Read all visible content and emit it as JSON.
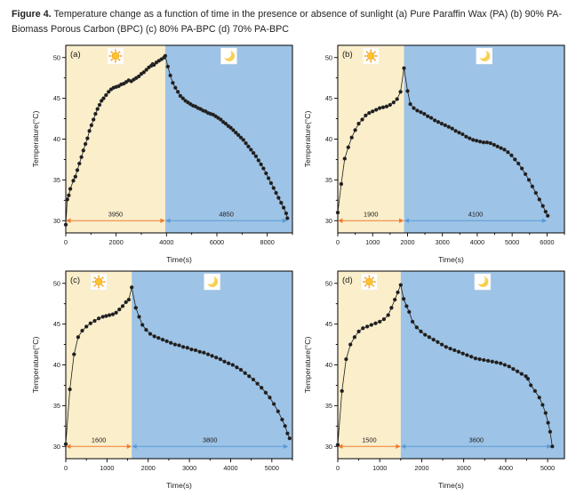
{
  "caption": {
    "bold_prefix": "Figure 4.",
    "text": " Temperature change as a function of time in the presence or absence of sunlight (a) Pure Paraffin Wax (PA) (b) 90% PA-Biomass Porous Carbon (BPC) (c) 80% PA-BPC (d) 70% PA-BPC"
  },
  "colors": {
    "day_region": "#FBEECB",
    "night_region": "#9DC3E6",
    "day_arrow": "#ED7D31",
    "night_arrow": "#5B9BD5",
    "curve": "#1C1C1C",
    "sun": "#F6A21C",
    "sun_core": "#FDC431",
    "moon": "#F7D154",
    "axis": "#000000",
    "text": "#1B1B1B"
  },
  "chart_data": [
    {
      "type": "scatter",
      "panel": "(a)",
      "sample": "Pure Paraffin Wax (PA)",
      "xlabel": "Time(s)",
      "ylabel": "Temperature(°C)",
      "xlim": [
        0,
        9000
      ],
      "ylim": [
        28.5,
        51.5
      ],
      "xticks": [
        0,
        2000,
        4000,
        6000,
        8000
      ],
      "yticks": [
        30,
        35,
        40,
        45,
        50
      ],
      "day_end": 3950,
      "night_end": 8800,
      "day_label": "3950",
      "night_label": "4850",
      "annotation_y": 30,
      "icons": [
        "sun-icon",
        "moon-icon"
      ],
      "points": [
        [
          0,
          29.5
        ],
        [
          60,
          32.6
        ],
        [
          120,
          33.1
        ],
        [
          180,
          33.9
        ],
        [
          300,
          34.9
        ],
        [
          380,
          35.4
        ],
        [
          460,
          36.2
        ],
        [
          540,
          37.0
        ],
        [
          620,
          37.8
        ],
        [
          700,
          38.6
        ],
        [
          780,
          39.4
        ],
        [
          860,
          40.1
        ],
        [
          940,
          41.0
        ],
        [
          1020,
          41.7
        ],
        [
          1100,
          42.4
        ],
        [
          1180,
          43.1
        ],
        [
          1260,
          43.7
        ],
        [
          1340,
          44.2
        ],
        [
          1420,
          44.7
        ],
        [
          1500,
          45.0
        ],
        [
          1600,
          45.4
        ],
        [
          1700,
          45.8
        ],
        [
          1800,
          46.1
        ],
        [
          1900,
          46.3
        ],
        [
          2000,
          46.4
        ],
        [
          2100,
          46.5
        ],
        [
          2200,
          46.7
        ],
        [
          2300,
          46.8
        ],
        [
          2400,
          47.0
        ],
        [
          2500,
          47.2
        ],
        [
          2600,
          47.1
        ],
        [
          2700,
          47.3
        ],
        [
          2800,
          47.5
        ],
        [
          2900,
          47.7
        ],
        [
          3000,
          48.0
        ],
        [
          3100,
          48.2
        ],
        [
          3200,
          48.5
        ],
        [
          3300,
          48.8
        ],
        [
          3400,
          49.0
        ],
        [
          3450,
          49.2
        ],
        [
          3500,
          49.1
        ],
        [
          3600,
          49.4
        ],
        [
          3700,
          49.6
        ],
        [
          3800,
          49.8
        ],
        [
          3900,
          50.0
        ],
        [
          3950,
          50.2
        ],
        [
          4050,
          48.9
        ],
        [
          4150,
          47.8
        ],
        [
          4250,
          46.9
        ],
        [
          4350,
          46.3
        ],
        [
          4450,
          45.8
        ],
        [
          4550,
          45.3
        ],
        [
          4650,
          45.0
        ],
        [
          4750,
          44.7
        ],
        [
          4850,
          44.5
        ],
        [
          4950,
          44.3
        ],
        [
          5050,
          44.1
        ],
        [
          5150,
          44.0
        ],
        [
          5250,
          43.8
        ],
        [
          5350,
          43.7
        ],
        [
          5450,
          43.5
        ],
        [
          5550,
          43.4
        ],
        [
          5650,
          43.2
        ],
        [
          5750,
          43.1
        ],
        [
          5850,
          43.0
        ],
        [
          5950,
          42.8
        ],
        [
          6050,
          42.6
        ],
        [
          6150,
          42.4
        ],
        [
          6250,
          42.1
        ],
        [
          6350,
          41.9
        ],
        [
          6450,
          41.6
        ],
        [
          6550,
          41.4
        ],
        [
          6650,
          41.1
        ],
        [
          6750,
          40.8
        ],
        [
          6850,
          40.5
        ],
        [
          6950,
          40.2
        ],
        [
          7050,
          39.9
        ],
        [
          7150,
          39.5
        ],
        [
          7250,
          39.1
        ],
        [
          7350,
          38.7
        ],
        [
          7450,
          38.3
        ],
        [
          7550,
          37.9
        ],
        [
          7650,
          37.4
        ],
        [
          7750,
          36.9
        ],
        [
          7850,
          36.4
        ],
        [
          7950,
          35.8
        ],
        [
          8050,
          35.2
        ],
        [
          8150,
          34.6
        ],
        [
          8250,
          34.0
        ],
        [
          8350,
          33.4
        ],
        [
          8450,
          32.8
        ],
        [
          8550,
          32.2
        ],
        [
          8650,
          31.6
        ],
        [
          8750,
          30.9
        ],
        [
          8800,
          30.3
        ]
      ]
    },
    {
      "type": "scatter",
      "panel": "(b)",
      "sample": "90% PA-BPC",
      "xlabel": "Time(s)",
      "ylabel": "Temperature(°C)",
      "xlim": [
        0,
        6500
      ],
      "ylim": [
        28.5,
        51.5
      ],
      "xticks": [
        0,
        1000,
        2000,
        3000,
        4000,
        5000,
        6000
      ],
      "yticks": [
        30,
        35,
        40,
        45,
        50
      ],
      "day_end": 1900,
      "night_end": 6000,
      "day_label": "1900",
      "night_label": "4100",
      "annotation_y": 30,
      "icons": [
        "sun-icon",
        "moon-icon"
      ],
      "points": [
        [
          0,
          31.0
        ],
        [
          100,
          34.5
        ],
        [
          200,
          37.6
        ],
        [
          300,
          39.0
        ],
        [
          400,
          40.2
        ],
        [
          500,
          41.1
        ],
        [
          600,
          41.9
        ],
        [
          700,
          42.4
        ],
        [
          800,
          42.9
        ],
        [
          900,
          43.2
        ],
        [
          1000,
          43.4
        ],
        [
          1100,
          43.6
        ],
        [
          1200,
          43.8
        ],
        [
          1300,
          43.9
        ],
        [
          1400,
          44.0
        ],
        [
          1500,
          44.2
        ],
        [
          1600,
          44.5
        ],
        [
          1700,
          44.9
        ],
        [
          1800,
          45.8
        ],
        [
          1900,
          48.7
        ],
        [
          2000,
          45.9
        ],
        [
          2080,
          44.3
        ],
        [
          2180,
          43.8
        ],
        [
          2280,
          43.5
        ],
        [
          2380,
          43.3
        ],
        [
          2480,
          43.1
        ],
        [
          2580,
          42.8
        ],
        [
          2680,
          42.6
        ],
        [
          2780,
          42.3
        ],
        [
          2880,
          42.1
        ],
        [
          2980,
          41.9
        ],
        [
          3080,
          41.7
        ],
        [
          3180,
          41.5
        ],
        [
          3280,
          41.3
        ],
        [
          3380,
          41.0
        ],
        [
          3480,
          40.8
        ],
        [
          3580,
          40.6
        ],
        [
          3680,
          40.3
        ],
        [
          3780,
          40.1
        ],
        [
          3880,
          39.9
        ],
        [
          3980,
          39.8
        ],
        [
          4080,
          39.7
        ],
        [
          4180,
          39.6
        ],
        [
          4280,
          39.6
        ],
        [
          4380,
          39.5
        ],
        [
          4480,
          39.3
        ],
        [
          4580,
          39.1
        ],
        [
          4680,
          38.9
        ],
        [
          4780,
          38.7
        ],
        [
          4880,
          38.4
        ],
        [
          4980,
          38.0
        ],
        [
          5080,
          37.5
        ],
        [
          5180,
          37.0
        ],
        [
          5280,
          36.4
        ],
        [
          5380,
          35.7
        ],
        [
          5480,
          35.0
        ],
        [
          5580,
          34.2
        ],
        [
          5680,
          33.4
        ],
        [
          5780,
          32.6
        ],
        [
          5880,
          31.8
        ],
        [
          5960,
          31.1
        ],
        [
          6020,
          30.6
        ]
      ]
    },
    {
      "type": "scatter",
      "panel": "(c)",
      "sample": "80% PA-BPC",
      "xlabel": "Time(s)",
      "ylabel": "Temperature(°C)",
      "xlim": [
        0,
        5500
      ],
      "ylim": [
        28.5,
        51.5
      ],
      "xticks": [
        0,
        1000,
        2000,
        3000,
        4000,
        5000
      ],
      "yticks": [
        30,
        35,
        40,
        45,
        50
      ],
      "day_end": 1600,
      "night_end": 5400,
      "day_label": "1600",
      "night_label": "3800",
      "annotation_y": 30,
      "icons": [
        "sun-icon",
        "moon-icon"
      ],
      "points": [
        [
          0,
          30.3
        ],
        [
          100,
          37.0
        ],
        [
          200,
          41.3
        ],
        [
          300,
          43.4
        ],
        [
          400,
          44.2
        ],
        [
          500,
          44.7
        ],
        [
          600,
          45.1
        ],
        [
          700,
          45.4
        ],
        [
          800,
          45.7
        ],
        [
          900,
          45.9
        ],
        [
          980,
          46.0
        ],
        [
          1060,
          46.1
        ],
        [
          1140,
          46.2
        ],
        [
          1220,
          46.4
        ],
        [
          1300,
          46.8
        ],
        [
          1380,
          47.2
        ],
        [
          1460,
          47.7
        ],
        [
          1530,
          48.0
        ],
        [
          1600,
          49.5
        ],
        [
          1700,
          47.0
        ],
        [
          1780,
          45.9
        ],
        [
          1860,
          44.9
        ],
        [
          1950,
          44.3
        ],
        [
          2050,
          43.8
        ],
        [
          2150,
          43.5
        ],
        [
          2250,
          43.3
        ],
        [
          2350,
          43.1
        ],
        [
          2450,
          42.9
        ],
        [
          2550,
          42.7
        ],
        [
          2650,
          42.5
        ],
        [
          2750,
          42.4
        ],
        [
          2850,
          42.2
        ],
        [
          2950,
          42.1
        ],
        [
          3050,
          41.9
        ],
        [
          3150,
          41.8
        ],
        [
          3250,
          41.6
        ],
        [
          3350,
          41.5
        ],
        [
          3450,
          41.3
        ],
        [
          3550,
          41.1
        ],
        [
          3650,
          40.9
        ],
        [
          3750,
          40.7
        ],
        [
          3850,
          40.4
        ],
        [
          3950,
          40.2
        ],
        [
          4050,
          40.0
        ],
        [
          4150,
          39.7
        ],
        [
          4250,
          39.4
        ],
        [
          4350,
          39.0
        ],
        [
          4450,
          38.6
        ],
        [
          4550,
          38.2
        ],
        [
          4650,
          37.7
        ],
        [
          4750,
          37.2
        ],
        [
          4850,
          36.6
        ],
        [
          4950,
          36.0
        ],
        [
          5050,
          35.2
        ],
        [
          5150,
          34.3
        ],
        [
          5250,
          33.3
        ],
        [
          5320,
          32.5
        ],
        [
          5380,
          31.6
        ],
        [
          5430,
          31.0
        ]
      ]
    },
    {
      "type": "scatter",
      "panel": "(d)",
      "sample": "70% PA-BPC",
      "xlabel": "Time(s)",
      "ylabel": "Temperature(°C)",
      "xlim": [
        0,
        5400
      ],
      "ylim": [
        28.5,
        51.5
      ],
      "xticks": [
        0,
        1000,
        2000,
        3000,
        4000,
        5000
      ],
      "yticks": [
        30,
        35,
        40,
        45,
        50
      ],
      "day_end": 1500,
      "night_end": 5100,
      "day_label": "1500",
      "night_label": "3600",
      "annotation_y": 30,
      "icons": [
        "sun-icon",
        "moon-icon"
      ],
      "points": [
        [
          0,
          30.2
        ],
        [
          100,
          36.8
        ],
        [
          200,
          40.7
        ],
        [
          300,
          42.5
        ],
        [
          400,
          43.4
        ],
        [
          500,
          44.1
        ],
        [
          600,
          44.5
        ],
        [
          700,
          44.7
        ],
        [
          800,
          44.9
        ],
        [
          900,
          45.1
        ],
        [
          1000,
          45.3
        ],
        [
          1100,
          45.6
        ],
        [
          1200,
          46.1
        ],
        [
          1280,
          47.0
        ],
        [
          1360,
          48.0
        ],
        [
          1430,
          48.9
        ],
        [
          1500,
          49.8
        ],
        [
          1570,
          48.1
        ],
        [
          1640,
          47.2
        ],
        [
          1700,
          46.5
        ],
        [
          1780,
          45.3
        ],
        [
          1880,
          44.6
        ],
        [
          1980,
          44.1
        ],
        [
          2080,
          43.7
        ],
        [
          2180,
          43.4
        ],
        [
          2280,
          43.1
        ],
        [
          2380,
          42.8
        ],
        [
          2480,
          42.5
        ],
        [
          2580,
          42.2
        ],
        [
          2680,
          42.0
        ],
        [
          2780,
          41.8
        ],
        [
          2880,
          41.6
        ],
        [
          2980,
          41.4
        ],
        [
          3080,
          41.2
        ],
        [
          3180,
          41.0
        ],
        [
          3280,
          40.8
        ],
        [
          3380,
          40.7
        ],
        [
          3480,
          40.6
        ],
        [
          3580,
          40.5
        ],
        [
          3680,
          40.4
        ],
        [
          3780,
          40.3
        ],
        [
          3880,
          40.2
        ],
        [
          3980,
          40.0
        ],
        [
          4080,
          39.8
        ],
        [
          4180,
          39.5
        ],
        [
          4280,
          39.2
        ],
        [
          4380,
          38.9
        ],
        [
          4480,
          38.6
        ],
        [
          4530,
          38.3
        ],
        [
          4600,
          37.5
        ],
        [
          4700,
          36.8
        ],
        [
          4800,
          36.0
        ],
        [
          4880,
          35.1
        ],
        [
          4950,
          34.1
        ],
        [
          5010,
          32.9
        ],
        [
          5060,
          31.8
        ],
        [
          5110,
          30.0
        ]
      ]
    }
  ]
}
